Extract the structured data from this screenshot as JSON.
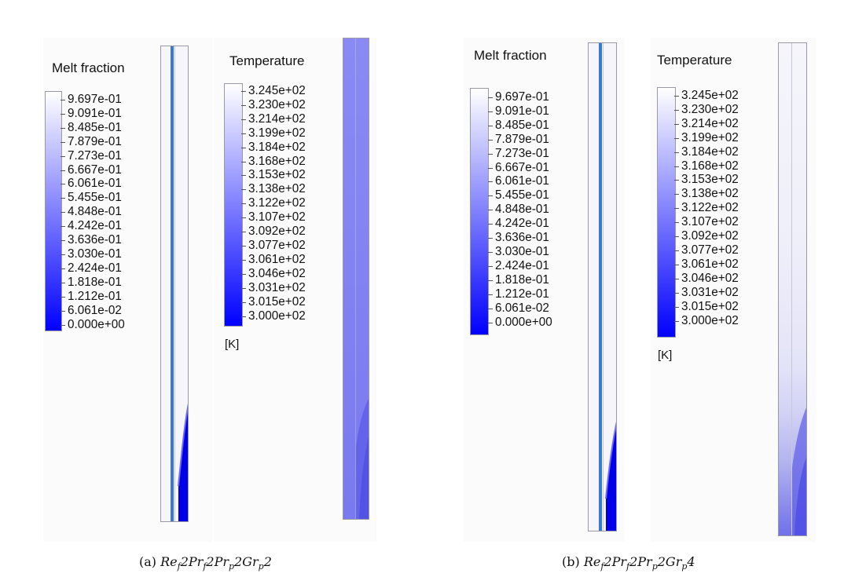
{
  "panels": [
    {
      "caption": {
        "label": "(a)",
        "Re_sub": "f",
        "Pr1_sub": "f",
        "Pr2_sub": "p",
        "Gr_sub": "p",
        "Gr_value": "2"
      },
      "melt_legend": {
        "title": "Melt fraction",
        "ticks": [
          "9.697e-01",
          "9.091e-01",
          "8.485e-01",
          "7.879e-01",
          "7.273e-01",
          "6.667e-01",
          "6.061e-01",
          "5.455e-01",
          "4.848e-01",
          "4.242e-01",
          "3.636e-01",
          "3.030e-01",
          "2.424e-01",
          "1.818e-01",
          "1.212e-01",
          "6.061e-02",
          "0.000e+00"
        ]
      },
      "temp_legend": {
        "title": "Temperature",
        "ticks": [
          "3.245e+02",
          "3.230e+02",
          "3.214e+02",
          "3.199e+02",
          "3.184e+02",
          "3.168e+02",
          "3.153e+02",
          "3.138e+02",
          "3.122e+02",
          "3.107e+02",
          "3.092e+02",
          "3.077e+02",
          "3.061e+02",
          "3.046e+02",
          "3.031e+02",
          "3.015e+02",
          "3.000e+02"
        ],
        "unit": "[K]"
      }
    },
    {
      "caption": {
        "label": "(b)",
        "Re_sub": "f",
        "Pr1_sub": "f",
        "Pr2_sub": "p",
        "Gr_sub": "p",
        "Gr_value": "4"
      },
      "melt_legend": {
        "title": "Melt fraction",
        "ticks": [
          "9.697e-01",
          "9.091e-01",
          "8.485e-01",
          "7.879e-01",
          "7.273e-01",
          "6.667e-01",
          "6.061e-01",
          "5.455e-01",
          "4.848e-01",
          "4.242e-01",
          "3.636e-01",
          "3.030e-01",
          "2.424e-01",
          "1.818e-01",
          "1.212e-01",
          "6.061e-02",
          "0.000e+00"
        ]
      },
      "temp_legend": {
        "title": "Temperature",
        "ticks": [
          "3.245e+02",
          "3.230e+02",
          "3.214e+02",
          "3.199e+02",
          "3.184e+02",
          "3.168e+02",
          "3.153e+02",
          "3.138e+02",
          "3.122e+02",
          "3.107e+02",
          "3.092e+02",
          "3.077e+02",
          "3.061e+02",
          "3.046e+02",
          "3.031e+02",
          "3.015e+02",
          "3.000e+02"
        ],
        "unit": "[K]"
      }
    }
  ],
  "colors": {
    "colormap_low": "#0000ff",
    "colormap_high": "#ffffff",
    "tube_wall": "#3a78d8"
  }
}
